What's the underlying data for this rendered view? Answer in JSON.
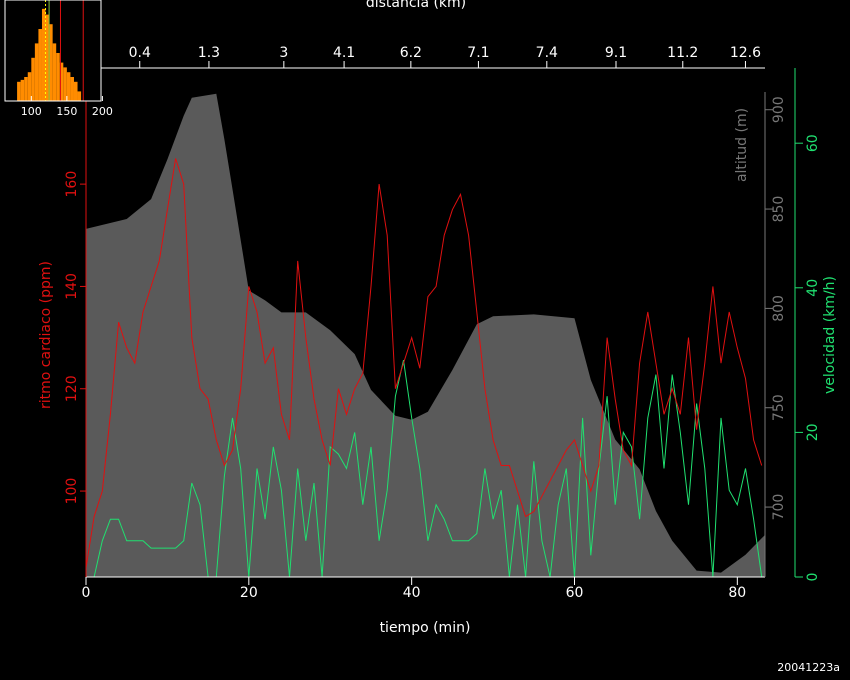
{
  "chart_data": [
    {
      "type": "line",
      "xlabel": "tiempo (min)",
      "x2label": "distancia (km)",
      "xlim": [
        0,
        83.4
      ],
      "xticks": [
        0,
        20,
        40,
        60,
        80
      ],
      "x2ticks": [
        {
          "time": 6.6,
          "distance": 0.4
        },
        {
          "time": 15.1,
          "distance": 1.3
        },
        {
          "time": 24.3,
          "distance": 3
        },
        {
          "time": 31.7,
          "distance": 4.1
        },
        {
          "time": 39.9,
          "distance": 6.2
        },
        {
          "time": 48.2,
          "distance": 7.1
        },
        {
          "time": 56.6,
          "distance": 7.4
        },
        {
          "time": 65.1,
          "distance": 9.1
        },
        {
          "time": 73.3,
          "distance": 11.2
        },
        {
          "time": 81,
          "distance": 12.6
        }
      ],
      "ylabel": "ritmo cardiaco (ppm)",
      "ylim": [
        83.2,
        182.7
      ],
      "yticks": [
        100,
        120,
        140,
        160
      ],
      "y2label": "altitud (m)",
      "y2lim": [
        664.8,
        921
      ],
      "y2ticks": [
        700,
        750,
        800,
        850,
        900
      ],
      "y3label": "velocidad (km/h)",
      "y3lim": [
        0,
        70.4
      ],
      "y3ticks": [
        0,
        20,
        40,
        60
      ],
      "series": [
        {
          "axis": "y2",
          "style": "area",
          "color": "#5a5a5a",
          "x": [
            0,
            5,
            8,
            10,
            12,
            13,
            16,
            17,
            18,
            20,
            22,
            24,
            27,
            30,
            33,
            35,
            38,
            40,
            42,
            45,
            48,
            50,
            55,
            60,
            62,
            65,
            68,
            70,
            72,
            75,
            78,
            81,
            83.4
          ],
          "values": [
            840,
            845,
            855,
            875,
            897,
            906,
            908,
            885,
            860,
            809,
            804,
            798,
            798,
            789,
            777,
            759,
            746,
            744,
            748,
            769,
            792,
            796,
            797,
            795,
            764,
            734,
            719,
            698,
            683,
            668,
            667,
            676,
            686
          ]
        },
        {
          "axis": "y3",
          "style": "line",
          "color": "#20e070",
          "x": [
            0,
            1,
            2,
            3,
            4,
            5,
            6,
            7,
            8,
            9,
            10,
            11,
            12,
            13,
            14,
            15,
            16,
            17,
            18,
            19,
            20,
            21,
            22,
            23,
            24,
            25,
            26,
            27,
            28,
            29,
            30,
            31,
            32,
            33,
            34,
            35,
            36,
            37,
            38,
            39,
            40,
            41,
            42,
            43,
            44,
            45,
            46,
            47,
            48,
            49,
            50,
            51,
            52,
            53,
            54,
            55,
            56,
            57,
            58,
            59,
            60,
            61,
            62,
            63,
            64,
            65,
            66,
            67,
            68,
            69,
            70,
            71,
            72,
            73,
            74,
            75,
            76,
            77,
            78,
            79,
            80,
            81,
            82,
            83
          ],
          "values": [
            0,
            0,
            5,
            8,
            8,
            5,
            5,
            5,
            4,
            4,
            4,
            4,
            5,
            13,
            10,
            0,
            0,
            14,
            22,
            15,
            0,
            15,
            8,
            18,
            12,
            0,
            15,
            5,
            13,
            0,
            18,
            17,
            15,
            20,
            10,
            18,
            5,
            12,
            25,
            30,
            22,
            15,
            5,
            10,
            8,
            5,
            5,
            5,
            6,
            15,
            8,
            12,
            0,
            10,
            0,
            16,
            5,
            0,
            10,
            15,
            0,
            22,
            3,
            15,
            25,
            10,
            20,
            18,
            8,
            22,
            28,
            15,
            28,
            20,
            10,
            24,
            15,
            0,
            22,
            12,
            10,
            15,
            8,
            0
          ]
        },
        {
          "axis": "y",
          "style": "line",
          "color": "#e01010",
          "x": [
            0,
            1,
            2,
            3,
            4,
            5,
            6,
            7,
            8,
            9,
            10,
            11,
            12,
            13,
            14,
            15,
            16,
            17,
            18,
            19,
            20,
            21,
            22,
            23,
            24,
            25,
            26,
            27,
            28,
            29,
            30,
            31,
            32,
            33,
            34,
            35,
            36,
            37,
            38,
            39,
            40,
            41,
            42,
            43,
            44,
            45,
            46,
            47,
            48,
            49,
            50,
            51,
            52,
            53,
            54,
            55,
            56,
            57,
            58,
            59,
            60,
            61,
            62,
            63,
            64,
            65,
            66,
            67,
            68,
            69,
            70,
            71,
            72,
            73,
            74,
            75,
            76,
            77,
            78,
            79,
            80,
            81,
            82,
            83
          ],
          "values": [
            85,
            95,
            100,
            115,
            133,
            128,
            125,
            135,
            140,
            145,
            155,
            165,
            160,
            130,
            120,
            118,
            110,
            105,
            108,
            120,
            140,
            135,
            125,
            128,
            115,
            110,
            145,
            130,
            118,
            110,
            105,
            120,
            115,
            120,
            123,
            140,
            160,
            150,
            120,
            125,
            130,
            124,
            138,
            140,
            150,
            155,
            158,
            150,
            135,
            120,
            110,
            105,
            105,
            100,
            95,
            96,
            99,
            102,
            105,
            108,
            110,
            105,
            100,
            105,
            130,
            118,
            108,
            105,
            125,
            135,
            125,
            115,
            120,
            115,
            130,
            112,
            125,
            140,
            125,
            135,
            128,
            122,
            110,
            105
          ]
        }
      ]
    },
    {
      "type": "histogram",
      "color": "#ff8c00",
      "bins": [
        80,
        85,
        90,
        95,
        100,
        105,
        110,
        115,
        120,
        125,
        130,
        135,
        140,
        145,
        150,
        155,
        160,
        165,
        170
      ],
      "values": [
        20,
        22,
        25,
        30,
        45,
        60,
        75,
        96,
        90,
        80,
        60,
        50,
        40,
        35,
        30,
        25,
        20,
        10
      ],
      "xlim": [
        63,
        198
      ],
      "xticks": [
        100,
        150,
        200
      ],
      "ylim": [
        0,
        100
      ],
      "markers": [
        {
          "value": 120,
          "color": "#ffff00",
          "dashed": true
        },
        {
          "value": 125,
          "color": "#80c040",
          "dashed": false
        },
        {
          "value": 141,
          "color": "#e01010",
          "dashed": false
        },
        {
          "value": 173,
          "color": "#e01010",
          "dashed": false
        }
      ]
    }
  ],
  "footer": "20041223a"
}
